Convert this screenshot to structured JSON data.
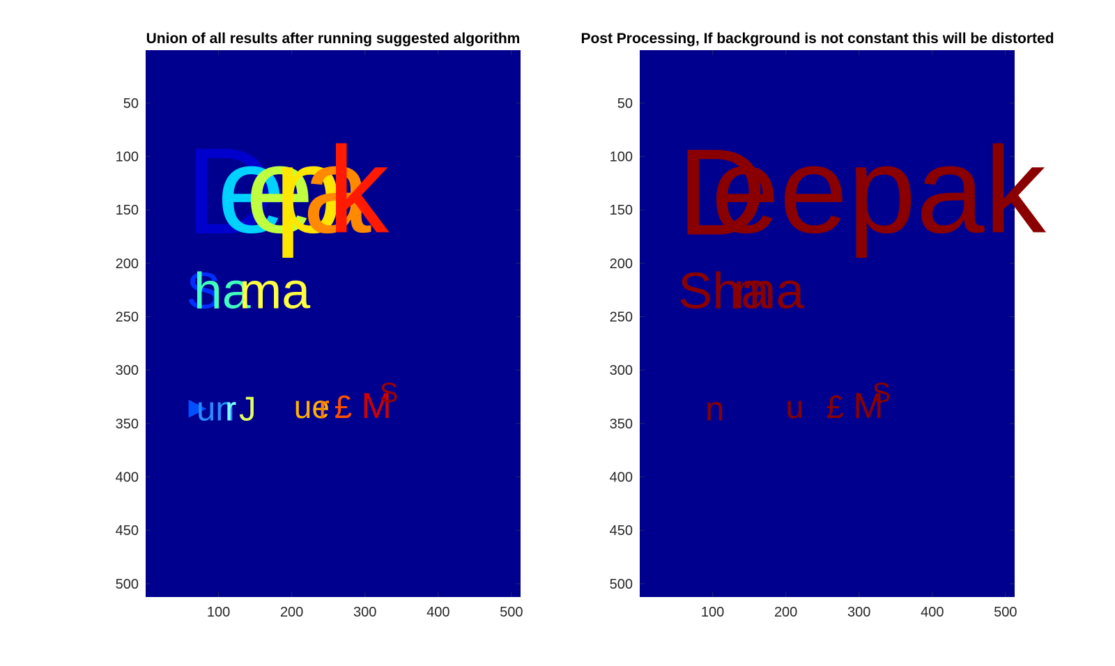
{
  "figure": {
    "background": "#ffffff",
    "axis_bg": "#00008f"
  },
  "chart_data": [
    {
      "type": "heatmap",
      "title": "Union of all results after running suggested algorithm",
      "xlabel": "",
      "ylabel": "",
      "xlim": [
        0.5,
        512.5
      ],
      "ylim": [
        0.5,
        512.5
      ],
      "y_direction": "reversed",
      "x_ticks": [
        100,
        200,
        300,
        400,
        500
      ],
      "y_ticks": [
        50,
        100,
        150,
        200,
        250,
        300,
        350,
        400,
        450,
        500
      ],
      "colormap": "jet",
      "background_color": "#00008f",
      "grid": false,
      "regions": [
        {
          "text": "D",
          "x": 55,
          "y": 172,
          "size": 115,
          "color": "#0000cd"
        },
        {
          "text": "e",
          "x": 98,
          "y": 171,
          "size": 115,
          "color": "#00d2ff"
        },
        {
          "text": "e",
          "x": 137,
          "y": 171,
          "size": 115,
          "color": "#bfff3f"
        },
        {
          "text": "p",
          "x": 176,
          "y": 171,
          "size": 115,
          "color": "#ffe600"
        },
        {
          "text": "a",
          "x": 215,
          "y": 171,
          "size": 115,
          "color": "#ff8a00"
        },
        {
          "text": "k",
          "x": 249,
          "y": 171,
          "size": 115,
          "color": "#ff1a00"
        },
        {
          "text": "S",
          "x": 56,
          "y": 242,
          "size": 48,
          "color": "#0030ff"
        },
        {
          "text": "ha",
          "x": 66,
          "y": 242,
          "size": 48,
          "color": "#40ffbf"
        },
        {
          "text": "ma",
          "x": 128,
          "y": 242,
          "size": 48,
          "color": "#ffff40"
        },
        {
          "text": "▶",
          "x": 59,
          "y": 342,
          "size": 22,
          "color": "#0050ff"
        },
        {
          "text": "un",
          "x": 70,
          "y": 347,
          "size": 32,
          "color": "#2a8cff"
        },
        {
          "text": "r",
          "x": 109,
          "y": 347,
          "size": 32,
          "color": "#80ffff"
        },
        {
          "text": "J",
          "x": 128,
          "y": 347,
          "size": 32,
          "color": "#e0ff60"
        },
        {
          "text": "ue",
          "x": 203,
          "y": 345,
          "size": 30,
          "color": "#ffb000"
        },
        {
          "text": "r",
          "x": 237,
          "y": 345,
          "size": 30,
          "color": "#ff7a00"
        },
        {
          "text": "£",
          "x": 258,
          "y": 345,
          "size": 30,
          "color": "#ff5000"
        },
        {
          "text": "M",
          "x": 295,
          "y": 345,
          "size": 34,
          "color": "#d00000"
        },
        {
          "text": "S",
          "x": 320,
          "y": 330,
          "size": 26,
          "color": "#a00000"
        }
      ]
    },
    {
      "type": "heatmap",
      "title": "Post Processing, If background is not constant this will be distorted",
      "xlabel": "",
      "ylabel": "",
      "xlim": [
        0.5,
        512.5
      ],
      "ylim": [
        0.5,
        512.5
      ],
      "y_direction": "reversed",
      "x_ticks": [
        100,
        200,
        300,
        400,
        500
      ],
      "y_ticks": [
        50,
        100,
        150,
        200,
        250,
        300,
        350,
        400,
        450,
        500
      ],
      "colormap": "jet",
      "background_color": "#00008f",
      "grid": false,
      "regions": [
        {
          "text": "D",
          "x": 52,
          "y": 173,
          "size": 115,
          "color": "#8a0000"
        },
        {
          "text": "eepak",
          "x": 98,
          "y": 171,
          "size": 115,
          "color": "#8a0000"
        },
        {
          "text": "Sha",
          "x": 53,
          "y": 242,
          "size": 48,
          "color": "#8a0000"
        },
        {
          "text": "ma",
          "x": 128,
          "y": 242,
          "size": 48,
          "color": "#8a0000"
        },
        {
          "text": "n",
          "x": 90,
          "y": 347,
          "size": 32,
          "color": "#8a0000"
        },
        {
          "text": "u",
          "x": 200,
          "y": 345,
          "size": 30,
          "color": "#8a0000"
        },
        {
          "text": "£",
          "x": 255,
          "y": 345,
          "size": 30,
          "color": "#8a0000"
        },
        {
          "text": "M",
          "x": 292,
          "y": 345,
          "size": 34,
          "color": "#8a0000"
        },
        {
          "text": "S",
          "x": 318,
          "y": 330,
          "size": 26,
          "color": "#8a0000"
        }
      ]
    }
  ]
}
